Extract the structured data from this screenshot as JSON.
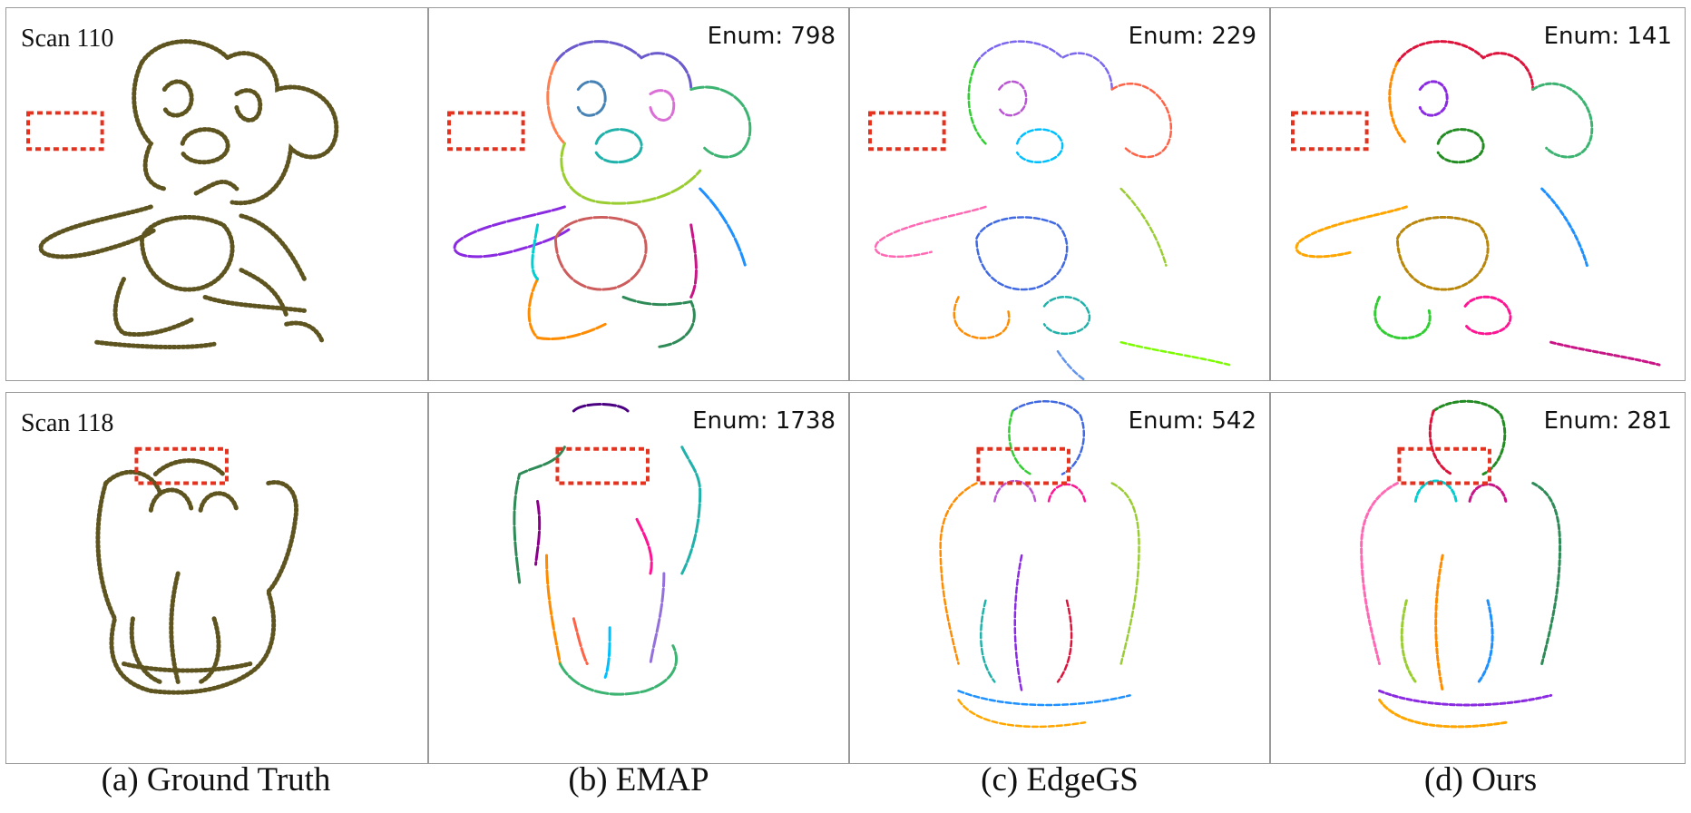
{
  "rows": [
    {
      "scan_label": "Scan 110",
      "enums": [
        "",
        "Enum: 798",
        "Enum: 229",
        "Enum: 141"
      ]
    },
    {
      "scan_label": "Scan 118",
      "enums": [
        "",
        "Enum: 1738",
        "Enum: 542",
        "Enum: 281"
      ]
    }
  ],
  "captions": [
    "(a) Ground Truth",
    "(b) EMAP",
    "(c) EdgeGS",
    "(d) Ours"
  ],
  "colors": {
    "ground_truth": "#5e5420",
    "highlight_box": "#e5321f",
    "panel_border": "#9a9a9a"
  }
}
